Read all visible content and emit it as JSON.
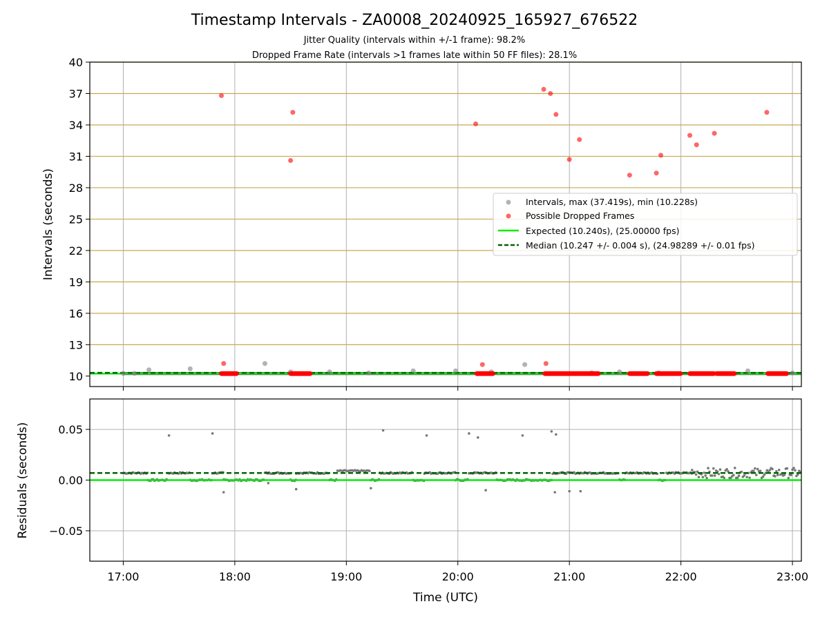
{
  "chart_data": [
    {
      "type": "scatter",
      "title": "Timestamp Intervals - ZA0008_20240925_165927_676522",
      "subtitle_lines": [
        "Jitter Quality (intervals within +/-1 frame): 98.2%",
        "Dropped Frame Rate (intervals >1 frames late within 50 FF files): 28.1%"
      ],
      "ylabel": "Intervals (seconds)",
      "xlabel": "",
      "ylim": [
        9,
        40
      ],
      "yticks": [
        10,
        13,
        16,
        19,
        22,
        25,
        28,
        31,
        34,
        37,
        40
      ],
      "ytick_labels": [
        "10",
        "13",
        "16",
        "19",
        "22",
        "25",
        "28",
        "31",
        "34",
        "37",
        "40"
      ],
      "x_range_hours": [
        16.7,
        23.08
      ],
      "xtick_hours": [
        17,
        18,
        19,
        20,
        21,
        22,
        23
      ],
      "grid": true,
      "horizontal_gold_lines_at": [
        13,
        16,
        19,
        22,
        25,
        28,
        31,
        34,
        37,
        40
      ],
      "legend_location": "center-right",
      "series": [
        {
          "name": "Intervals, max (37.419s), min (10.228s)",
          "color": "#808080",
          "x_hours": [
            17.0,
            17.1,
            17.23,
            17.6,
            18.27,
            18.5,
            18.85,
            19.2,
            19.6,
            19.98,
            20.3,
            20.6,
            21.2,
            21.45,
            21.8,
            22.6,
            23.0
          ],
          "y": [
            10.25,
            10.26,
            10.6,
            10.7,
            11.2,
            10.4,
            10.4,
            10.3,
            10.5,
            10.5,
            10.4,
            11.1,
            10.3,
            10.4,
            10.3,
            10.5,
            10.3
          ]
        },
        {
          "name": "Possible Dropped Frames",
          "color": "#ff0000",
          "x_hours": [
            17.88,
            17.9,
            18.52,
            18.5,
            20.16,
            20.22,
            20.77,
            20.79,
            20.83,
            20.88,
            21.0,
            21.09,
            21.54,
            21.78,
            21.82,
            22.08,
            22.14,
            22.3,
            22.77
          ],
          "y": [
            36.8,
            11.2,
            35.2,
            30.6,
            34.1,
            11.1,
            37.4,
            11.2,
            37.0,
            35.0,
            30.7,
            32.6,
            29.2,
            29.4,
            31.1,
            33.0,
            32.1,
            33.2,
            35.2
          ],
          "dense_clusters_at_10_24": [
            [
              17.88,
              18.02
            ],
            [
              18.5,
              18.68
            ],
            [
              20.17,
              20.32
            ],
            [
              20.78,
              21.26
            ],
            [
              21.54,
              21.7
            ],
            [
              21.78,
              22.0
            ],
            [
              22.08,
              22.3
            ],
            [
              22.32,
              22.48
            ],
            [
              22.78,
              22.95
            ]
          ]
        },
        {
          "name": "Expected (10.240s), (25.00000 fps)",
          "color": "#00ee00",
          "y_constant": 10.24
        },
        {
          "name": "Median (10.247 +/- 0.004 s), (24.98289 +/- 0.01 fps)",
          "color": "#006400",
          "y_constant": 10.247,
          "style": "dashed"
        }
      ]
    },
    {
      "type": "scatter",
      "title": "",
      "ylabel": "Residuals (seconds)",
      "xlabel": "Time (UTC)",
      "ylim": [
        -0.08,
        0.08
      ],
      "yticks": [
        -0.05,
        0.0,
        0.05
      ],
      "ytick_labels": [
        "−0.05",
        "0.00",
        "0.05"
      ],
      "x_range_hours": [
        16.7,
        23.08
      ],
      "xtick_hours": [
        17,
        18,
        19,
        20,
        21,
        22,
        23
      ],
      "xtick_labels": [
        "17:00",
        "18:00",
        "19:00",
        "20:00",
        "21:00",
        "22:00",
        "23:00"
      ],
      "grid": true,
      "series": [
        {
          "name": "Residuals",
          "color": "#777777",
          "outliers_x_hours": [
            17.41,
            17.8,
            19.33,
            19.72,
            20.1,
            20.18,
            20.58,
            20.84,
            20.88,
            17.9,
            18.55,
            20.25,
            20.87,
            21.0,
            21.1,
            18.3,
            19.22
          ],
          "outliers_y": [
            0.044,
            0.046,
            0.049,
            0.044,
            0.046,
            0.042,
            0.044,
            0.048,
            0.045,
            -0.012,
            -0.009,
            -0.01,
            -0.012,
            -0.011,
            -0.011,
            -0.003,
            -0.008
          ],
          "baseline_segments": [
            {
              "from": 17.0,
              "to": 17.22,
              "y": 0.007
            },
            {
              "from": 17.22,
              "to": 17.4,
              "y": 0.0
            },
            {
              "from": 17.4,
              "to": 17.6,
              "y": 0.007
            },
            {
              "from": 17.6,
              "to": 17.8,
              "y": 0.0
            },
            {
              "from": 17.8,
              "to": 17.9,
              "y": 0.007
            },
            {
              "from": 17.9,
              "to": 18.27,
              "y": 0.0
            },
            {
              "from": 18.27,
              "to": 18.5,
              "y": 0.007
            },
            {
              "from": 18.5,
              "to": 18.55,
              "y": 0.0
            },
            {
              "from": 18.55,
              "to": 18.85,
              "y": 0.007
            },
            {
              "from": 18.85,
              "to": 18.92,
              "y": 0.0
            },
            {
              "from": 18.92,
              "to": 19.22,
              "y": 0.009
            },
            {
              "from": 19.22,
              "to": 19.3,
              "y": 0.0
            },
            {
              "from": 19.3,
              "to": 19.6,
              "y": 0.007
            },
            {
              "from": 19.6,
              "to": 19.7,
              "y": 0.0
            },
            {
              "from": 19.7,
              "to": 19.98,
              "y": 0.007
            },
            {
              "from": 19.98,
              "to": 20.1,
              "y": 0.0
            },
            {
              "from": 20.1,
              "to": 20.35,
              "y": 0.007
            },
            {
              "from": 20.35,
              "to": 20.6,
              "y": 0.0
            },
            {
              "from": 20.6,
              "to": 20.85,
              "y": 0.0
            },
            {
              "from": 20.85,
              "to": 21.45,
              "y": 0.007
            },
            {
              "from": 21.45,
              "to": 21.5,
              "y": 0.0
            },
            {
              "from": 21.5,
              "to": 21.8,
              "y": 0.007
            },
            {
              "from": 21.8,
              "to": 21.87,
              "y": 0.0
            },
            {
              "from": 21.87,
              "to": 22.1,
              "y": 0.007
            },
            {
              "from": 22.1,
              "to": 23.08,
              "y": 0.007
            }
          ]
        },
        {
          "name": "Expected",
          "color": "#00ee00",
          "y_constant": 0.0
        },
        {
          "name": "Median",
          "color": "#006400",
          "y_constant": 0.007,
          "style": "dashed"
        }
      ]
    }
  ],
  "colors": {
    "grid": "#b0b0b0",
    "gold_grid": "#c8a850",
    "interval_marker": "#808080",
    "dropped_marker": "#ff0000",
    "expected_line": "#00ee00",
    "median_line": "#006400",
    "dark_band": "#444444"
  }
}
